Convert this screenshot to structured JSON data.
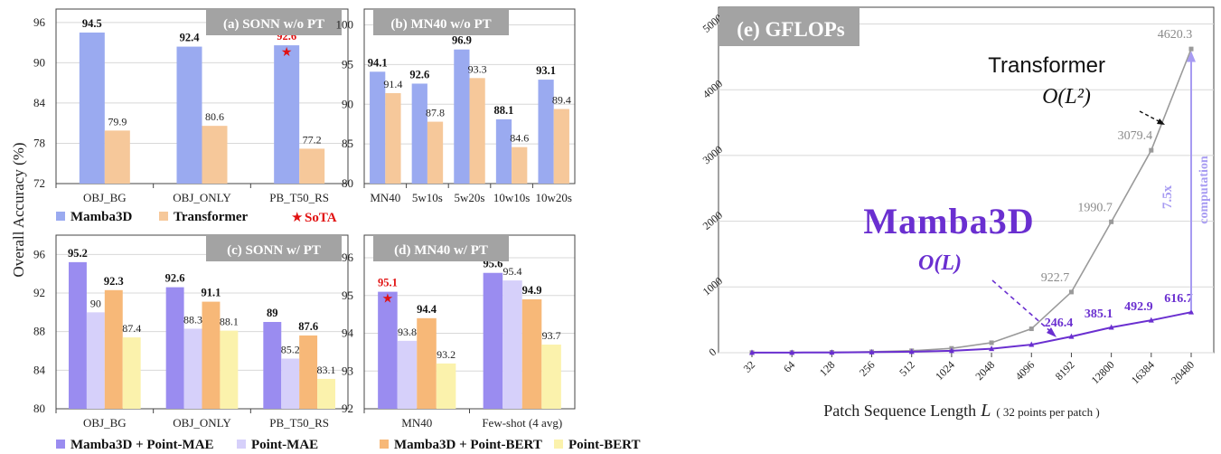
{
  "shared": {
    "ylabel": "Overall Accuracy (%)",
    "legend_top": [
      {
        "label": "Mamba3D",
        "color": "#9aaaf0"
      },
      {
        "label": "Transformer",
        "color": "#f6c89a"
      },
      {
        "label": "SoTA",
        "color": "#e11111",
        "symbol": "★"
      }
    ],
    "legend_bottom": [
      {
        "label": "Mamba3D + Point-MAE",
        "color": "#9a8cf0"
      },
      {
        "label": "Point-MAE",
        "color": "#d6d0fa"
      },
      {
        "label": "Mamba3D + Point-BERT",
        "color": "#f7b878"
      },
      {
        "label": "Point-BERT",
        "color": "#fbf2ac"
      }
    ]
  },
  "chart_data": [
    {
      "id": "a",
      "type": "bar",
      "title": "(a) SONN w/o PT",
      "categories": [
        "OBJ_BG",
        "OBJ_ONLY",
        "PB_T50_RS"
      ],
      "ylim": [
        72,
        98
      ],
      "yticks": [
        72,
        78,
        84,
        90,
        96
      ],
      "series": [
        {
          "name": "Mamba3D",
          "values": [
            94.5,
            92.4,
            92.6
          ],
          "color": "#9aaaf0",
          "bold": true
        },
        {
          "name": "Transformer",
          "values": [
            79.9,
            80.6,
            77.2
          ],
          "color": "#f6c89a",
          "bold": false
        }
      ],
      "sota": [
        {
          "series": 0,
          "index": 2
        }
      ]
    },
    {
      "id": "b",
      "type": "bar",
      "title": "(b) MN40 w/o PT",
      "categories": [
        "MN40",
        "5w10s",
        "5w20s",
        "10w10s",
        "10w20s"
      ],
      "ylim": [
        80,
        102
      ],
      "yticks": [
        80,
        85,
        90,
        95,
        100
      ],
      "series": [
        {
          "name": "Mamba3D",
          "values": [
            94.1,
            92.6,
            96.9,
            88.1,
            93.1
          ],
          "color": "#9aaaf0",
          "bold": true
        },
        {
          "name": "Transformer",
          "values": [
            91.4,
            87.8,
            93.3,
            84.6,
            89.4
          ],
          "color": "#f6c89a",
          "bold": false
        }
      ],
      "sota": []
    },
    {
      "id": "c",
      "type": "bar",
      "title": "(c) SONN w/ PT",
      "categories": [
        "OBJ_BG",
        "OBJ_ONLY",
        "PB_T50_RS"
      ],
      "ylim": [
        80,
        98
      ],
      "yticks": [
        80,
        84,
        88,
        92,
        96
      ],
      "series": [
        {
          "name": "Mamba3D + Point-MAE",
          "values": [
            95.2,
            92.6,
            89
          ],
          "color": "#9a8cf0",
          "bold": true
        },
        {
          "name": "Point-MAE",
          "values": [
            90,
            88.3,
            85.2
          ],
          "color": "#d6d0fa",
          "bold": false
        },
        {
          "name": "Mamba3D + Point-BERT",
          "values": [
            92.3,
            91.1,
            87.6
          ],
          "color": "#f7b878",
          "bold": true
        },
        {
          "name": "Point-BERT",
          "values": [
            87.4,
            88.1,
            83.1
          ],
          "color": "#fbf2ac",
          "bold": false
        }
      ],
      "sota": []
    },
    {
      "id": "d",
      "type": "bar",
      "title": "(d) MN40 w/ PT",
      "categories": [
        "MN40",
        "Few-shot (4 avg)"
      ],
      "ylim": [
        92,
        96.6
      ],
      "yticks": [
        92,
        93,
        94,
        95,
        96
      ],
      "series": [
        {
          "name": "Mamba3D + Point-MAE",
          "values": [
            95.1,
            95.6
          ],
          "color": "#9a8cf0",
          "bold": true
        },
        {
          "name": "Point-MAE",
          "values": [
            93.8,
            95.4
          ],
          "color": "#d6d0fa",
          "bold": false
        },
        {
          "name": "Mamba3D + Point-BERT",
          "values": [
            94.4,
            94.9
          ],
          "color": "#f7b878",
          "bold": true
        },
        {
          "name": "Point-BERT",
          "values": [
            93.2,
            93.7
          ],
          "color": "#fbf2ac",
          "bold": false
        }
      ],
      "sota": [
        {
          "series": 0,
          "index": 0
        }
      ]
    },
    {
      "id": "e",
      "type": "line",
      "title": "(e) GFLOPs",
      "categories": [
        "32",
        "64",
        "128",
        "256",
        "512",
        "1024",
        "2048",
        "4096",
        "8192",
        "12800",
        "16384",
        "20480"
      ],
      "ylim": [
        0,
        5200
      ],
      "yticks": [
        0,
        1000,
        2000,
        3000,
        4000,
        5000
      ],
      "xlabel": "Patch Sequence Length",
      "xlabel_var": "L",
      "xlabel_note": "( 32 points per patch )",
      "series": [
        {
          "name": "Transformer",
          "color": "#9a9a9a",
          "values": [
            1.6,
            3.3,
            6.7,
            14,
            30,
            66,
            152,
            364,
            922.7,
            1990.7,
            3079.4,
            4620.3
          ],
          "labels": [
            null,
            null,
            null,
            null,
            null,
            null,
            null,
            null,
            "922.7",
            "1990.7",
            "3079.4",
            "4620.3"
          ]
        },
        {
          "name": "Mamba3D",
          "color": "#6a2fd0",
          "values": [
            1,
            2,
            4,
            8,
            15,
            30,
            61,
            123,
            246.4,
            385.1,
            492.9,
            616.7
          ],
          "labels": [
            null,
            null,
            null,
            null,
            null,
            null,
            null,
            null,
            "246.4",
            "385.1",
            "492.9",
            "616.7"
          ]
        }
      ],
      "annotations": {
        "transformer_name": "Transformer",
        "transformer_complexity": "O(L²)",
        "mamba_name": "Mamba3D",
        "mamba_complexity": "O(L)",
        "ratio": "7.5x",
        "ratio_note": "computation"
      }
    }
  ]
}
